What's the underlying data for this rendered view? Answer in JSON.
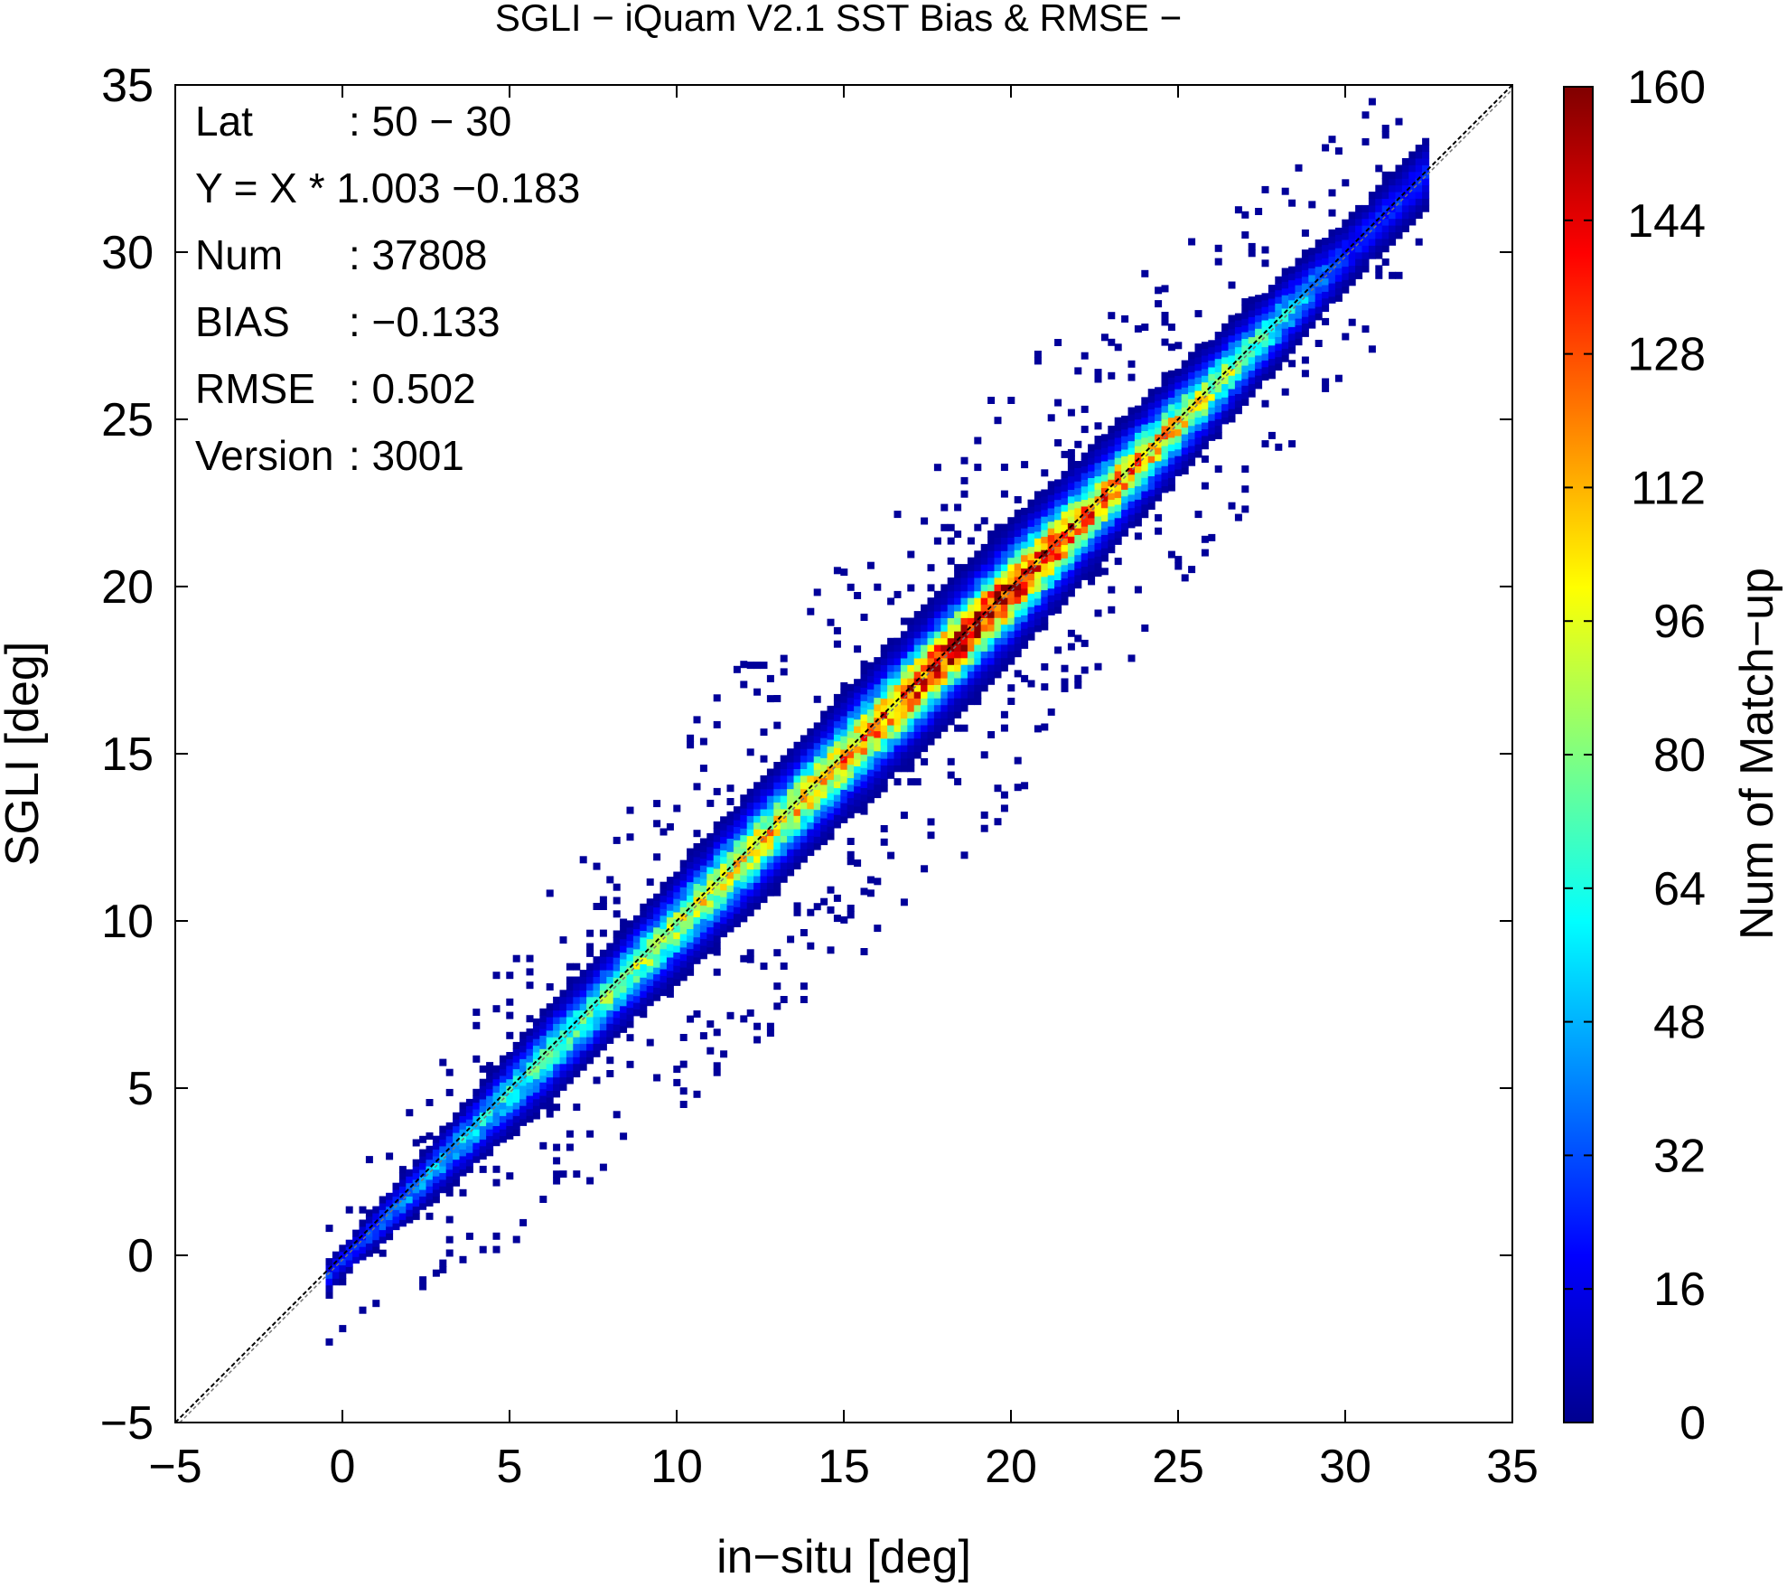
{
  "chart_data": {
    "type": "heatmap",
    "title": "SGLI − iQuam V2.1 SST Bias & RMSE  −",
    "xlabel": "in−situ [deg]",
    "ylabel": "SGLI [deg]",
    "xlim": [
      -5,
      35
    ],
    "ylim": [
      -5,
      35
    ],
    "xticks": [
      "−5",
      "0",
      "5",
      "10",
      "15",
      "20",
      "25",
      "30",
      "35"
    ],
    "yticks": [
      "−5",
      "0",
      "5",
      "10",
      "15",
      "20",
      "25",
      "30",
      "35"
    ],
    "grid": false,
    "reference_line": {
      "slope": 1,
      "intercept": 0,
      "style": "dashed"
    },
    "regression": {
      "slope": 1.003,
      "intercept": -0.183
    },
    "stats": [
      {
        "label": "Lat",
        "value": ": 50 − 30"
      },
      {
        "label": "Y = X * 1.003 −0.183",
        "value": ""
      },
      {
        "label": "Num",
        "value": ": 37808"
      },
      {
        "label": "BIAS",
        "value": ": −0.133"
      },
      {
        "label": "RMSE",
        "value": ": 0.502"
      },
      {
        "label": "Version",
        "value": ": 3001"
      }
    ],
    "colorbar": {
      "label": "Num of Match−up",
      "min": 0,
      "max": 160,
      "ticks": [
        "0",
        "16",
        "32",
        "48",
        "64",
        "80",
        "96",
        "112",
        "128",
        "144",
        "160"
      ],
      "colors": [
        "#00008f",
        "#0000ff",
        "#0080ff",
        "#00ffff",
        "#80ff80",
        "#ffff00",
        "#ff8000",
        "#ff0000",
        "#800000"
      ]
    },
    "density_ridge": {
      "x": [
        0,
        2,
        4,
        6,
        8,
        10,
        12,
        14,
        16,
        18,
        20,
        22,
        24,
        26,
        28,
        30
      ],
      "peak_count": [
        25,
        45,
        55,
        70,
        80,
        90,
        100,
        110,
        120,
        150,
        145,
        125,
        115,
        90,
        60,
        25
      ],
      "spread": [
        0.4,
        0.6,
        0.8,
        1.0,
        1.0,
        1.1,
        1.2,
        1.2,
        1.3,
        1.3,
        1.3,
        1.2,
        1.1,
        1.0,
        0.9,
        0.8
      ]
    }
  }
}
